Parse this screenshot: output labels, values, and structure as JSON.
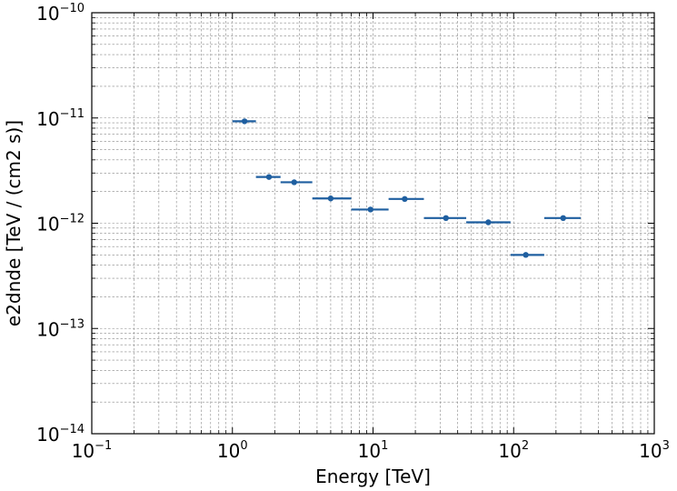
{
  "chart_data": {
    "type": "scatter",
    "xlabel": "Energy [TeV]",
    "ylabel": "e2dnde [TeV / (cm2 s)]",
    "xscale": "log",
    "yscale": "log",
    "xlim": [
      0.1,
      1000
    ],
    "ylim": [
      1e-14,
      1e-10
    ],
    "x_ticks": [
      {
        "base": "10",
        "exp": "−1"
      },
      {
        "base": "10",
        "exp": "0"
      },
      {
        "base": "10",
        "exp": "1"
      },
      {
        "base": "10",
        "exp": "2"
      },
      {
        "base": "10",
        "exp": "3"
      }
    ],
    "y_ticks": [
      {
        "base": "10",
        "exp": "−14"
      },
      {
        "base": "10",
        "exp": "−13"
      },
      {
        "base": "10",
        "exp": "−12"
      },
      {
        "base": "10",
        "exp": "−11"
      },
      {
        "base": "10",
        "exp": "−10"
      }
    ],
    "grid": true,
    "color": "#1f5fa0",
    "points": [
      {
        "x": 1.22,
        "y": 9.3e-12,
        "xmin": 1.0,
        "xmax": 1.47
      },
      {
        "x": 1.82,
        "y": 2.75e-12,
        "xmin": 1.47,
        "xmax": 2.2
      },
      {
        "x": 2.75,
        "y": 2.45e-12,
        "xmin": 2.2,
        "xmax": 3.7
      },
      {
        "x": 5.0,
        "y": 1.72e-12,
        "xmin": 3.7,
        "xmax": 7.0
      },
      {
        "x": 9.6,
        "y": 1.35e-12,
        "xmin": 7.0,
        "xmax": 12.9
      },
      {
        "x": 16.8,
        "y": 1.7e-12,
        "xmin": 12.9,
        "xmax": 23.0
      },
      {
        "x": 33.0,
        "y": 1.12e-12,
        "xmin": 23.0,
        "xmax": 46.0
      },
      {
        "x": 66.0,
        "y": 1.02e-12,
        "xmin": 46.0,
        "xmax": 95.0
      },
      {
        "x": 122.0,
        "y": 5e-13,
        "xmin": 95.0,
        "xmax": 165.0
      },
      {
        "x": 225.0,
        "y": 1.12e-12,
        "xmin": 165.0,
        "xmax": 300.0
      }
    ]
  }
}
